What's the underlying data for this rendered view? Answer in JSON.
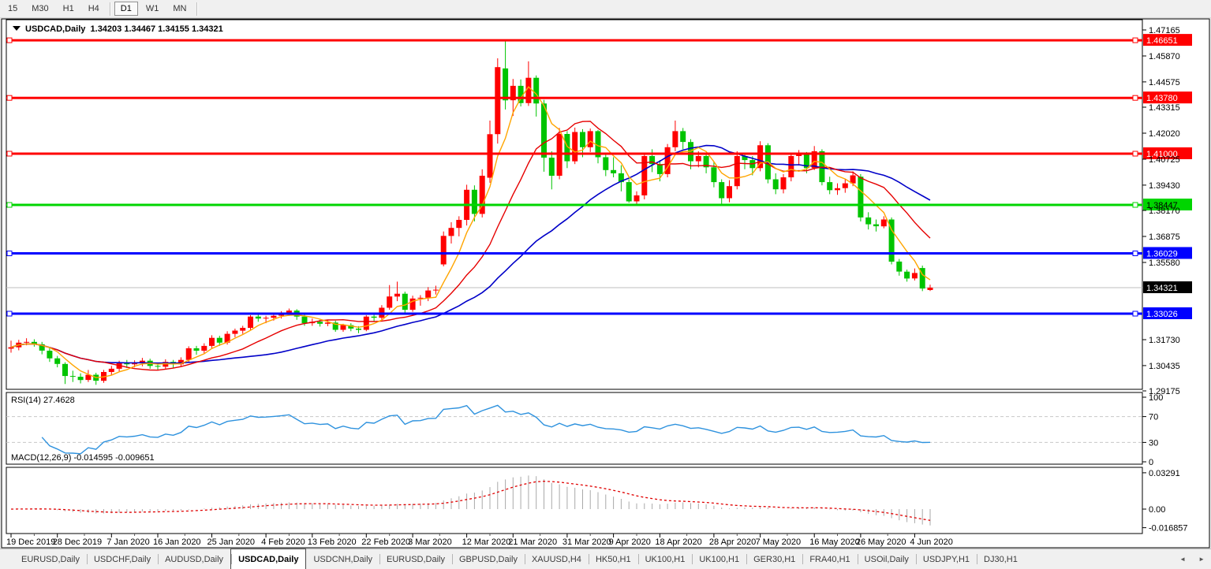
{
  "toolbar": {
    "buttons": [
      {
        "label": "15",
        "active": false
      },
      {
        "label": "M30",
        "active": false
      },
      {
        "label": "H1",
        "active": false
      },
      {
        "label": "H4",
        "active": false
      },
      {
        "label": "D1",
        "active": true
      },
      {
        "label": "W1",
        "active": false
      },
      {
        "label": "MN",
        "active": false
      }
    ]
  },
  "title": {
    "dropdown_icon": "▼",
    "symbol": "USDCAD,Daily",
    "open": "1.34203",
    "high": "1.34467",
    "low": "1.34155",
    "close": "1.34321"
  },
  "chart_data": {
    "type": "candlestick",
    "symbol": "USDCAD",
    "timeframe": "Daily",
    "colors": {
      "up": "#ff0000",
      "down": "#00c400",
      "ma_fast": "#ffa500",
      "ma_mid": "#e60000",
      "ma_slow": "#0000c8",
      "rsi": "#2e92de",
      "macd_hist": "#a9a9a9",
      "macd_signal": "#e00000",
      "grid": "#c0c0c0"
    },
    "ohlc": {
      "o": [
        1.3128,
        1.3135,
        1.3158,
        1.3162,
        1.315,
        1.3118,
        1.308,
        1.3052,
        1.2992,
        1.2988,
        1.2972,
        1.2998,
        1.2968,
        1.3012,
        1.3028,
        1.3058,
        1.305,
        1.3056,
        1.3068,
        1.3042,
        1.3038,
        1.3062,
        1.305,
        1.3072,
        1.313,
        1.3118,
        1.3142,
        1.3182,
        1.3158,
        1.3202,
        1.3218,
        1.3232,
        1.3288,
        1.3278,
        1.3282,
        1.3292,
        1.3302,
        1.3318,
        1.3288,
        1.3255,
        1.3262,
        1.3252,
        1.3258,
        1.3222,
        1.3245,
        1.3228,
        1.3222,
        1.3288,
        1.3282,
        1.3332,
        1.3388,
        1.3402,
        1.3322,
        1.3378,
        1.3382,
        1.3418,
        1.3548,
        1.369,
        1.373,
        1.377,
        1.392,
        1.38,
        1.398,
        1.4197,
        1.4525,
        1.4366,
        1.4438,
        1.4352,
        1.4478,
        1.435,
        1.408,
        1.399,
        1.4198,
        1.4062,
        1.4208,
        1.4132,
        1.4212,
        1.4082,
        1.4018,
        1.4002,
        1.3958,
        1.3862,
        1.3892,
        1.4088,
        1.4048,
        1.3998,
        1.4132,
        1.4212,
        1.4158,
        1.4062,
        1.4088,
        1.4032,
        1.3958,
        1.3878,
        1.3938,
        1.4088,
        1.4068,
        1.4028,
        1.4142,
        1.3972,
        1.3922,
        1.3982,
        1.4088,
        1.4098,
        1.4028,
        1.4112,
        1.3958,
        1.3918,
        1.3928,
        1.3952,
        1.3985,
        1.3782,
        1.3748,
        1.3738,
        1.3772,
        1.3562,
        1.3512,
        1.3478,
        1.353,
        1.34203
      ],
      "h": [
        1.3168,
        1.3172,
        1.318,
        1.3175,
        1.3162,
        1.3132,
        1.3092,
        1.306,
        1.3018,
        1.3005,
        1.3022,
        1.3008,
        1.3022,
        1.3042,
        1.3068,
        1.3072,
        1.307,
        1.3082,
        1.3078,
        1.3058,
        1.3075,
        1.3072,
        1.3085,
        1.314,
        1.3142,
        1.3155,
        1.3195,
        1.3192,
        1.3215,
        1.3228,
        1.3242,
        1.3295,
        1.3302,
        1.3292,
        1.33,
        1.3315,
        1.3328,
        1.3325,
        1.3298,
        1.3278,
        1.3272,
        1.3272,
        1.3268,
        1.3252,
        1.3255,
        1.324,
        1.3295,
        1.3302,
        1.3345,
        1.3445,
        1.3462,
        1.3412,
        1.3392,
        1.3395,
        1.3435,
        1.3442,
        1.3712,
        1.3758,
        1.3788,
        1.3945,
        1.3942,
        1.4022,
        1.4265,
        1.4575,
        1.4668,
        1.4472,
        1.447,
        1.456,
        1.449,
        1.4368,
        1.4112,
        1.4228,
        1.4212,
        1.423,
        1.4222,
        1.4225,
        1.4218,
        1.4102,
        1.4082,
        1.4042,
        1.3972,
        1.3912,
        1.4102,
        1.4122,
        1.4068,
        1.4148,
        1.4265,
        1.4228,
        1.4172,
        1.4112,
        1.4102,
        1.4058,
        1.3972,
        1.3968,
        1.4112,
        1.4098,
        1.4088,
        1.4162,
        1.4152,
        1.4002,
        1.3998,
        1.4102,
        1.4118,
        1.4108,
        1.4138,
        1.4122,
        1.3985,
        1.3952,
        1.3972,
        1.4012,
        1.3998,
        1.3808,
        1.3772,
        1.3788,
        1.3782,
        1.3575,
        1.3522,
        1.3528,
        1.3542,
        1.34467
      ],
      "l": [
        1.3108,
        1.312,
        1.3145,
        1.3138,
        1.31,
        1.3062,
        1.3035,
        1.2952,
        1.2962,
        1.2955,
        1.2962,
        1.2948,
        1.2958,
        1.2998,
        1.3015,
        1.3032,
        1.3035,
        1.304,
        1.3028,
        1.3022,
        1.3028,
        1.3032,
        1.304,
        1.3062,
        1.3098,
        1.3105,
        1.313,
        1.3142,
        1.3148,
        1.3185,
        1.3202,
        1.3222,
        1.3262,
        1.3255,
        1.3268,
        1.3278,
        1.3292,
        1.3272,
        1.3242,
        1.3242,
        1.3238,
        1.324,
        1.3212,
        1.3212,
        1.3215,
        1.3205,
        1.3215,
        1.3265,
        1.3272,
        1.3322,
        1.3365,
        1.3305,
        1.3312,
        1.3342,
        1.3365,
        1.3398,
        1.3538,
        1.3652,
        1.3688,
        1.3742,
        1.3762,
        1.3782,
        1.3955,
        1.415,
        1.432,
        1.4288,
        1.4335,
        1.4338,
        1.4285,
        1.401,
        1.3922,
        1.3972,
        1.4028,
        1.4048,
        1.4082,
        1.4108,
        1.4052,
        1.3988,
        1.3982,
        1.3912,
        1.3855,
        1.3842,
        1.3872,
        1.4008,
        1.3962,
        1.3982,
        1.4112,
        1.4122,
        1.4022,
        1.4032,
        1.4002,
        1.3932,
        1.385,
        1.3858,
        1.3922,
        1.4022,
        1.3992,
        1.4012,
        1.3952,
        1.3898,
        1.3902,
        1.3962,
        1.4042,
        1.4002,
        1.4018,
        1.3942,
        1.3898,
        1.3895,
        1.3905,
        1.3938,
        1.3762,
        1.3722,
        1.3712,
        1.3728,
        1.3548,
        1.3492,
        1.3462,
        1.3468,
        1.3415,
        1.34155
      ],
      "c": [
        1.3135,
        1.3158,
        1.3162,
        1.315,
        1.3118,
        1.308,
        1.3052,
        1.2992,
        1.2988,
        1.2972,
        1.2998,
        1.2968,
        1.3012,
        1.3028,
        1.3058,
        1.305,
        1.3056,
        1.3068,
        1.3042,
        1.3038,
        1.3062,
        1.305,
        1.3072,
        1.313,
        1.3118,
        1.3142,
        1.3182,
        1.3158,
        1.3202,
        1.3218,
        1.3232,
        1.3288,
        1.3278,
        1.3282,
        1.3292,
        1.3302,
        1.3318,
        1.3288,
        1.3255,
        1.3262,
        1.3252,
        1.3258,
        1.3222,
        1.3245,
        1.3228,
        1.3222,
        1.3288,
        1.3282,
        1.3332,
        1.3388,
        1.3402,
        1.3322,
        1.3378,
        1.3382,
        1.3418,
        1.3422,
        1.369,
        1.373,
        1.377,
        1.392,
        1.38,
        1.399,
        1.4197,
        1.4531,
        1.4366,
        1.4438,
        1.4352,
        1.4478,
        1.435,
        1.408,
        1.399,
        1.4198,
        1.4062,
        1.4208,
        1.4132,
        1.4212,
        1.4082,
        1.4018,
        1.4002,
        1.3958,
        1.3862,
        1.3892,
        1.4088,
        1.4048,
        1.3998,
        1.4132,
        1.4212,
        1.4158,
        1.4062,
        1.4088,
        1.4032,
        1.3958,
        1.3878,
        1.3938,
        1.4088,
        1.4068,
        1.4028,
        1.4142,
        1.3972,
        1.3922,
        1.3982,
        1.4088,
        1.4098,
        1.4028,
        1.4112,
        1.3958,
        1.3918,
        1.3928,
        1.3952,
        1.3992,
        1.3782,
        1.3748,
        1.3738,
        1.3772,
        1.3562,
        1.3512,
        1.3478,
        1.3505,
        1.3428,
        1.34321
      ]
    },
    "moving_averages": [
      {
        "name": "ma-fast",
        "period": 5,
        "color": "#ffa500"
      },
      {
        "name": "ma-mid",
        "period": 13,
        "color": "#e60000"
      },
      {
        "name": "ma-slow",
        "period": 30,
        "color": "#0000c8"
      }
    ],
    "hlines": [
      {
        "price": 1.46651,
        "label": "1.46651",
        "color": "#ff0000",
        "text_color": "#ffffff"
      },
      {
        "price": 1.4378,
        "label": "1.43780",
        "color": "#ff0000",
        "text_color": "#ffffff"
      },
      {
        "price": 1.41,
        "label": "1.41000",
        "color": "#ff0000",
        "text_color": "#ffffff"
      },
      {
        "price": 1.38447,
        "label": "1.38447",
        "color": "#00d500",
        "text_color": "#000000"
      },
      {
        "price": 1.36029,
        "label": "1.36029",
        "color": "#0000ff",
        "text_color": "#ffffff"
      },
      {
        "price": 1.33026,
        "label": "1.33026",
        "color": "#0000ff",
        "text_color": "#ffffff"
      }
    ],
    "current_price": {
      "value": 1.34321,
      "label": "1.34321",
      "badge_bg": "#000000",
      "badge_text": "#ffffff"
    },
    "price_axis_ticks": [
      "1.47165",
      "1.45870",
      "1.44575",
      "1.43315",
      "1.42020",
      "1.40725",
      "1.39430",
      "1.38170",
      "1.36875",
      "1.35580",
      "1.31730",
      "1.30435",
      "1.29175"
    ],
    "date_labels": [
      {
        "i": 0,
        "t": "19 Dec 2019"
      },
      {
        "i": 6,
        "t": "28 Dec 2019"
      },
      {
        "i": 13,
        "t": "7 Jan 2020"
      },
      {
        "i": 19,
        "t": "16 Jan 2020"
      },
      {
        "i": 26,
        "t": "25 Jan 2020"
      },
      {
        "i": 33,
        "t": "4 Feb 2020"
      },
      {
        "i": 39,
        "t": "13 Feb 2020"
      },
      {
        "i": 46,
        "t": "22 Feb 2020"
      },
      {
        "i": 52,
        "t": "3 Mar 2020"
      },
      {
        "i": 59,
        "t": "12 Mar 2020"
      },
      {
        "i": 65,
        "t": "21 Mar 2020"
      },
      {
        "i": 72,
        "t": "31 Mar 2020"
      },
      {
        "i": 78,
        "t": "9 Apr 2020"
      },
      {
        "i": 84,
        "t": "18 Apr 2020"
      },
      {
        "i": 91,
        "t": "28 Apr 2020"
      },
      {
        "i": 97,
        "t": "7 May 2020"
      },
      {
        "i": 104,
        "t": "16 May 2020"
      },
      {
        "i": 110,
        "t": "26 May 2020"
      },
      {
        "i": 117,
        "t": "4 Jun 2020"
      }
    ],
    "indicators": {
      "rsi": {
        "label": "RSI(14) 27.4628",
        "period": 14,
        "value": "27.4628",
        "levels": [
          "100",
          "70",
          "30",
          "0"
        ],
        "level_values": [
          100,
          70,
          30,
          0
        ]
      },
      "macd": {
        "label": "MACD(12,26,9) -0.014595 -0.009651",
        "fast": 12,
        "slow": 26,
        "signal": 9,
        "main_value": "-0.014595",
        "signal_value": "-0.009651",
        "axis_labels": [
          "0.03291",
          "0.00",
          "-0.016857"
        ],
        "axis_values": [
          0.03291,
          0,
          -0.016857
        ]
      }
    }
  },
  "tabs": {
    "items": [
      "EURUSD,Daily",
      "USDCHF,Daily",
      "AUDUSD,Daily",
      "USDCAD,Daily",
      "USDCNH,Daily",
      "EURUSD,Daily",
      "GBPUSD,Daily",
      "XAUUSD,H4",
      "HK50,H1",
      "UK100,H1",
      "UK100,H1",
      "GER30,H1",
      "FRA40,H1",
      "USOil,Daily",
      "USDJPY,H1",
      "DJ30,H1"
    ],
    "active_index": 3,
    "scroll_left_icon": "◄",
    "scroll_right_icon": "►"
  }
}
